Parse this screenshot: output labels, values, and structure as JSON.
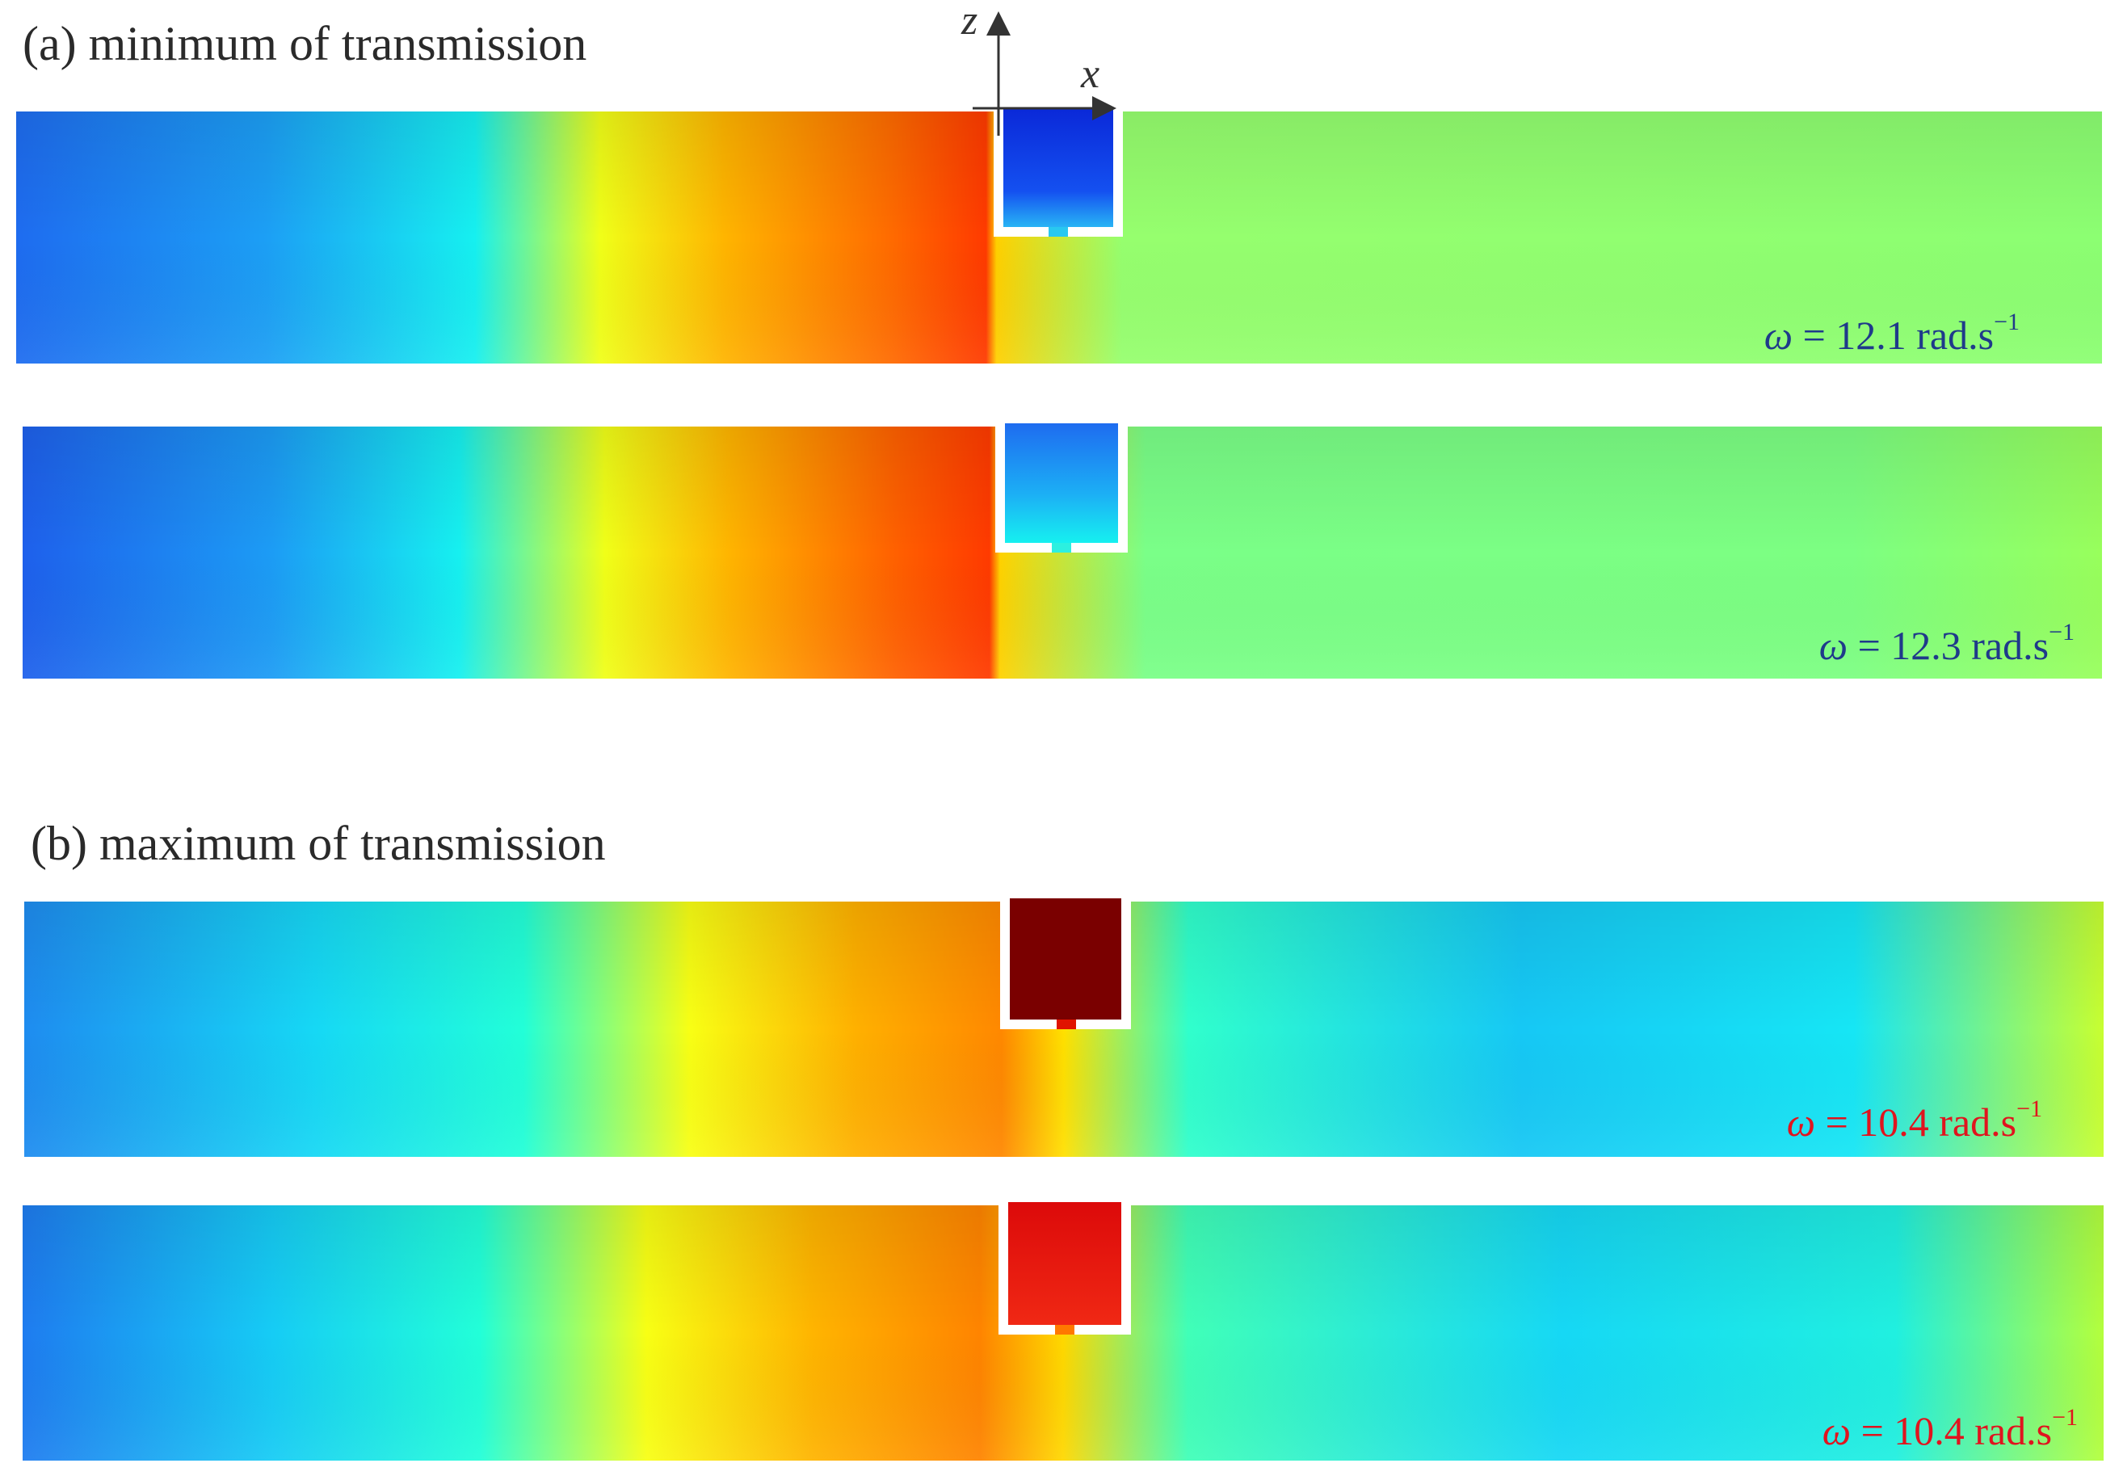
{
  "sections": [
    {
      "title": "(a) minimum of transmission",
      "panels": [
        {
          "omega_symbol": "ω",
          "omega_value": "= 12.1 rad.s",
          "omega_exp": "−1",
          "label_color": "#1f3a8a"
        },
        {
          "omega_symbol": "ω",
          "omega_value": "= 12.3 rad.s",
          "omega_exp": "−1",
          "label_color": "#1f3a8a"
        }
      ]
    },
    {
      "title": "(b) maximum of transmission",
      "panels": [
        {
          "omega_symbol": "ω",
          "omega_value": "= 10.4 rad.s",
          "omega_exp": "−1",
          "label_color": "#e0141e"
        },
        {
          "omega_symbol": "ω",
          "omega_value": "= 10.4 rad.s",
          "omega_exp": "−1",
          "label_color": "#e0141e"
        }
      ]
    }
  ],
  "axes": {
    "horizontal": "x",
    "vertical": "z"
  }
}
